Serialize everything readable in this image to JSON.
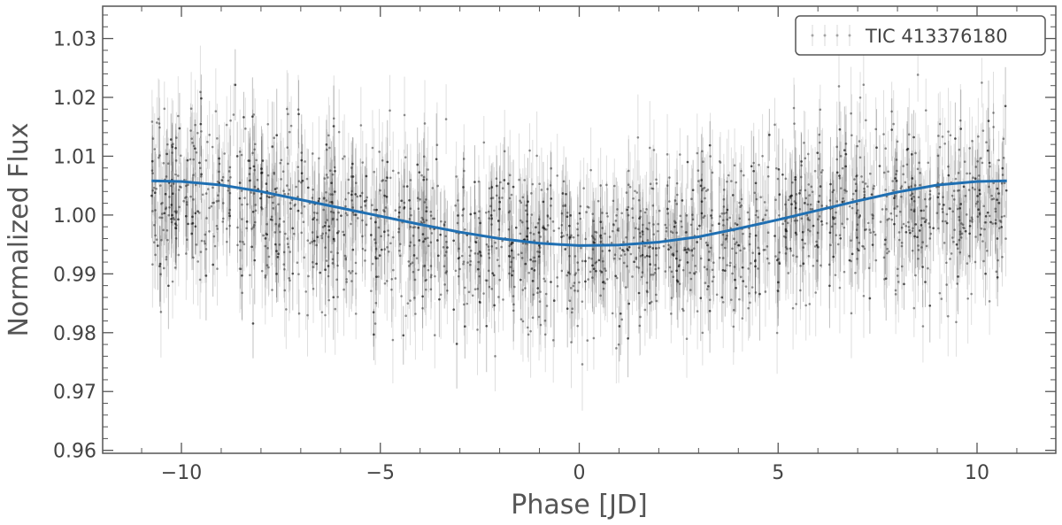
{
  "chart_data": {
    "type": "scatter",
    "title": "",
    "xlabel": "Phase [JD]",
    "ylabel": "Normalized Flux",
    "xlim": [
      -11.98,
      11.98
    ],
    "ylim": [
      0.9595,
      1.0355
    ],
    "xticks": [
      -10,
      -5,
      0,
      5,
      10
    ],
    "xtick_labels": [
      "−10",
      "−5",
      "0",
      "5",
      "10"
    ],
    "yticks": [
      0.96,
      0.97,
      0.98,
      0.99,
      1.0,
      1.01,
      1.02,
      1.03
    ],
    "ytick_labels": [
      "0.96",
      "0.97",
      "0.98",
      "0.99",
      "1.00",
      "1.01",
      "1.02",
      "1.03"
    ],
    "grid": false,
    "legend": {
      "position": "top-right",
      "entries": [
        "TIC 413376180"
      ]
    },
    "series": [
      {
        "name": "TIC 413376180",
        "kind": "scatter with error bars",
        "color": "#000000",
        "x_range": [
          -10.75,
          10.75
        ],
        "y_center": 1.0,
        "y_spread": 0.01,
        "bin_profile": [
          {
            "x": -10.5,
            "low": 0.991,
            "high": 1.016
          },
          {
            "x": -9.0,
            "low": 0.99,
            "high": 1.017
          },
          {
            "x": -7.5,
            "low": 0.987,
            "high": 1.015
          },
          {
            "x": -6.0,
            "low": 0.985,
            "high": 1.012
          },
          {
            "x": -4.5,
            "low": 0.984,
            "high": 1.011
          },
          {
            "x": -3.0,
            "low": 0.982,
            "high": 1.009
          },
          {
            "x": -1.5,
            "low": 0.983,
            "high": 1.008
          },
          {
            "x": 0.0,
            "low": 0.982,
            "high": 1.007
          },
          {
            "x": 1.5,
            "low": 0.983,
            "high": 1.007
          },
          {
            "x": 3.0,
            "low": 0.984,
            "high": 1.008
          },
          {
            "x": 4.5,
            "low": 0.985,
            "high": 1.011
          },
          {
            "x": 6.0,
            "low": 0.987,
            "high": 1.015
          },
          {
            "x": 7.5,
            "low": 0.989,
            "high": 1.016
          },
          {
            "x": 9.0,
            "low": 0.984,
            "high": 1.017
          },
          {
            "x": 10.5,
            "low": 0.989,
            "high": 1.017
          }
        ],
        "gap_x": [
          -9.95,
          -8.7,
          -6.0,
          -4.6,
          -3.25,
          -1.85,
          -0.55,
          0.8,
          2.1,
          3.45,
          4.85,
          6.2,
          7.55,
          8.9
        ]
      },
      {
        "name": "model",
        "kind": "line",
        "color": "#1f6fb2",
        "x": [
          -10.75,
          -10,
          -9,
          -8,
          -7,
          -6,
          -5,
          -4,
          -3,
          -2,
          -1,
          0,
          1,
          2,
          3,
          4,
          5,
          6,
          7,
          8,
          9,
          10,
          10.75
        ],
        "y": [
          1.0058,
          1.0057,
          1.0051,
          1.004,
          1.0026,
          1.0012,
          0.9998,
          0.9984,
          0.9971,
          0.996,
          0.9952,
          0.9948,
          0.9949,
          0.9954,
          0.9963,
          0.9977,
          0.9992,
          1.0008,
          1.0024,
          1.0039,
          1.0051,
          1.0057,
          1.0058
        ]
      }
    ]
  }
}
